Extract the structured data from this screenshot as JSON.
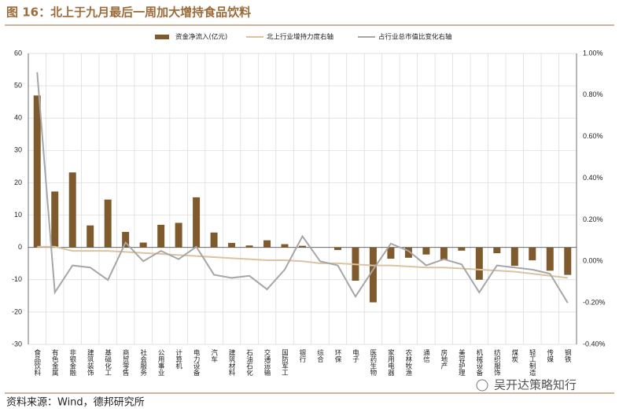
{
  "chart_data": {
    "type": "combo",
    "title": "图 16：北上于九月最后一周加大增持食品饮料",
    "categories": [
      "食品饮料",
      "有色金属",
      "非银金融",
      "建筑装饰",
      "基础化工",
      "商贸零售",
      "社会服务",
      "公用事业",
      "计算机",
      "电力设备",
      "汽车",
      "建筑材料",
      "石油石化",
      "交通运输",
      "国防军工",
      "银行",
      "综合",
      "环保",
      "电子",
      "医药生物",
      "家用电器",
      "农林牧渔",
      "通信",
      "房地产",
      "美容护理",
      "机械设备",
      "纺织服饰",
      "煤炭",
      "轻工制造",
      "传媒",
      "钢铁"
    ],
    "series": [
      {
        "name": "资金净流入(亿元)",
        "type": "bar",
        "color": "#7f5a2c",
        "values": [
          47,
          17.3,
          23.2,
          6.8,
          14.8,
          4.8,
          1.5,
          7.0,
          7.6,
          15.5,
          4.6,
          1.4,
          0.6,
          2.2,
          1.0,
          0.5,
          0,
          -0.8,
          -10.3,
          -17,
          -3.5,
          -3.2,
          -2.2,
          -3.8,
          -1,
          -10,
          -1.8,
          -5.7,
          -4,
          -7.2,
          -8.5
        ]
      },
      {
        "name": "北上行业增持力度右轴",
        "type": "line",
        "axis": "y2",
        "color": "#d9c3a0",
        "values": [
          0.07,
          0.07,
          0.05,
          0.05,
          0.05,
          0.045,
          0.04,
          0.035,
          0.03,
          0.025,
          0.02,
          0.015,
          0.01,
          0.005,
          0.005,
          0.0,
          -0.01,
          -0.01,
          -0.015,
          -0.02,
          -0.02,
          -0.025,
          -0.03,
          -0.03,
          -0.035,
          -0.04,
          -0.045,
          -0.05,
          -0.06,
          -0.07,
          -0.08
        ]
      },
      {
        "name": "占行业总市值比变化右轴",
        "type": "line",
        "axis": "y2",
        "color": "#a6a6a6",
        "values": [
          0.91,
          -0.15,
          -0.02,
          -0.03,
          -0.09,
          0.09,
          0,
          0.05,
          0.01,
          0.07,
          -0.065,
          -0.08,
          -0.07,
          -0.135,
          -0.04,
          0.12,
          0,
          -0.02,
          -0.17,
          -0.04,
          0.085,
          0.05,
          -0.02,
          0.01,
          -0.015,
          -0.15,
          -0.02,
          -0.03,
          -0.04,
          -0.06,
          -0.2
        ]
      }
    ],
    "ylim": [
      -30,
      60
    ],
    "yticks": [
      -30,
      -20,
      -10,
      0,
      10,
      20,
      30,
      40,
      50,
      60
    ],
    "y2lim": [
      -0.4,
      1.0
    ],
    "y2ticks": [
      {
        "value": -0.4,
        "label": "-0.40%"
      },
      {
        "value": -0.2,
        "label": "-0.20%"
      },
      {
        "value": 0,
        "label": "0.00%"
      },
      {
        "value": 0.2,
        "label": "0.20%"
      },
      {
        "value": 0.4,
        "label": "0.40%"
      },
      {
        "value": 0.6,
        "label": "0.60%"
      },
      {
        "value": 0.8,
        "label": "0.80%"
      },
      {
        "value": 1.0,
        "label": "1.00%"
      }
    ],
    "grid": true
  },
  "source": "资料来源：Wind，德邦研究所",
  "watermark": "吴开达策略知行"
}
